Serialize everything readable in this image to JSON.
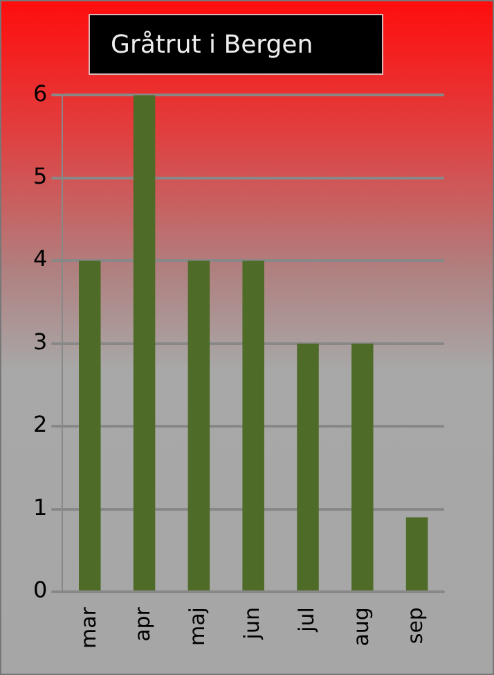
{
  "chart_data": {
    "type": "bar",
    "title": "Gråtrut i Bergen",
    "categories": [
      "mar",
      "apr",
      "maj",
      "jun",
      "jul",
      "aug",
      "sep"
    ],
    "values": [
      4,
      6,
      4,
      4,
      3,
      3,
      0.9
    ],
    "color": "#4f6b28",
    "ylim": [
      0,
      6
    ],
    "yticks": [
      0,
      1,
      2,
      3,
      4,
      5,
      6
    ],
    "grid": "y"
  }
}
